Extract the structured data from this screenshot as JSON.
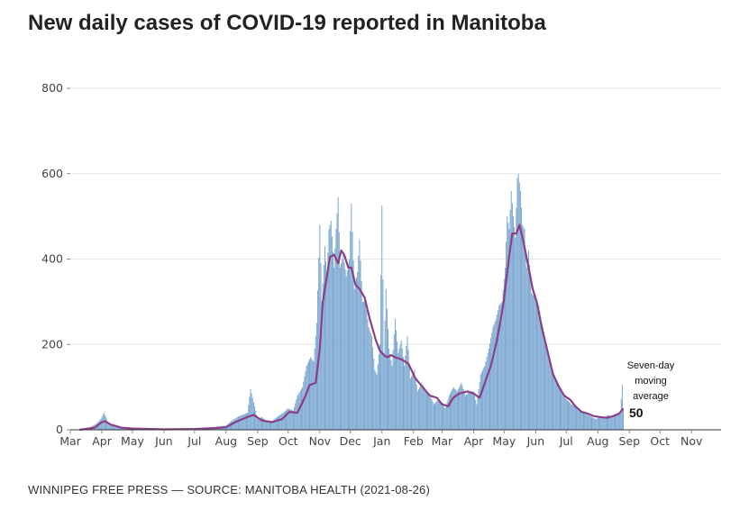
{
  "header": {
    "title": "New daily cases of COVID-19 reported in Manitoba"
  },
  "footer": {
    "source": "WINNIPEG FREE PRESS — SOURCE: MANITOBA HEALTH (2021-08-26)"
  },
  "colors": {
    "bars": "#7ba7d1",
    "average_line": "#8b3f86",
    "grid": "#e6e6e6",
    "axis": "#333333"
  },
  "chart_data": {
    "type": "bar",
    "title": "New daily cases of COVID-19 reported in Manitoba",
    "xlabel": "",
    "ylabel": "",
    "ylim": [
      0,
      800
    ],
    "y_ticks": [
      0,
      200,
      400,
      600,
      800
    ],
    "x_axis": "date",
    "x_range": [
      "2020-03-01",
      "2021-11-30"
    ],
    "x_tick_labels": [
      "Mar",
      "Apr",
      "May",
      "Jun",
      "Jul",
      "Aug",
      "Sep",
      "Oct",
      "Nov",
      "Dec",
      "Jan",
      "Feb",
      "Mar",
      "Apr",
      "May",
      "Jun",
      "Jul",
      "Aug",
      "Sep",
      "Oct",
      "Nov"
    ],
    "x_tick_dates": [
      "2020-03-01",
      "2020-04-01",
      "2020-05-01",
      "2020-06-01",
      "2020-07-01",
      "2020-08-01",
      "2020-09-01",
      "2020-10-01",
      "2020-11-01",
      "2020-12-01",
      "2021-01-01",
      "2021-02-01",
      "2021-03-01",
      "2021-04-01",
      "2021-05-01",
      "2021-06-01",
      "2021-07-01",
      "2021-08-01",
      "2021-09-01",
      "2021-10-01",
      "2021-11-01"
    ],
    "grid": true,
    "series": [
      {
        "kind": "bars",
        "values_note": "",
        "points": [
          [
            "2020-03-12",
            2
          ],
          [
            "2020-03-20",
            5
          ],
          [
            "2020-03-27",
            15
          ],
          [
            "2020-03-31",
            25
          ],
          [
            "2020-04-03",
            40
          ],
          [
            "2020-04-07",
            18
          ],
          [
            "2020-04-12",
            8
          ],
          [
            "2020-04-20",
            4
          ],
          [
            "2020-05-01",
            3
          ],
          [
            "2020-05-15",
            2
          ],
          [
            "2020-06-01",
            1
          ],
          [
            "2020-06-15",
            1
          ],
          [
            "2020-07-01",
            2
          ],
          [
            "2020-07-15",
            3
          ],
          [
            "2020-07-25",
            8
          ],
          [
            "2020-08-01",
            10
          ],
          [
            "2020-08-06",
            20
          ],
          [
            "2020-08-12",
            30
          ],
          [
            "2020-08-17",
            35
          ],
          [
            "2020-08-22",
            40
          ],
          [
            "2020-08-25",
            95
          ],
          [
            "2020-09-01",
            25
          ],
          [
            "2020-09-05",
            30
          ],
          [
            "2020-09-10",
            20
          ],
          [
            "2020-09-15",
            20
          ],
          [
            "2020-09-20",
            30
          ],
          [
            "2020-09-26",
            40
          ],
          [
            "2020-10-01",
            50
          ],
          [
            "2020-10-06",
            45
          ],
          [
            "2020-10-10",
            80
          ],
          [
            "2020-10-15",
            100
          ],
          [
            "2020-10-19",
            150
          ],
          [
            "2020-10-23",
            170
          ],
          [
            "2020-10-26",
            160
          ],
          [
            "2020-10-29",
            250
          ],
          [
            "2020-11-01",
            480
          ],
          [
            "2020-11-03",
            300
          ],
          [
            "2020-11-06",
            430
          ],
          [
            "2020-11-08",
            360
          ],
          [
            "2020-11-10",
            470
          ],
          [
            "2020-11-12",
            490
          ],
          [
            "2020-11-15",
            380
          ],
          [
            "2020-11-17",
            470
          ],
          [
            "2020-11-19",
            545
          ],
          [
            "2020-11-21",
            380
          ],
          [
            "2020-11-24",
            410
          ],
          [
            "2020-11-27",
            360
          ],
          [
            "2020-11-30",
            400
          ],
          [
            "2020-12-02",
            530
          ],
          [
            "2020-12-05",
            330
          ],
          [
            "2020-12-08",
            370
          ],
          [
            "2020-12-10",
            445
          ],
          [
            "2020-12-13",
            300
          ],
          [
            "2020-12-16",
            300
          ],
          [
            "2020-12-19",
            240
          ],
          [
            "2020-12-22",
            220
          ],
          [
            "2020-12-25",
            140
          ],
          [
            "2020-12-27",
            130
          ],
          [
            "2020-12-30",
            200
          ],
          [
            "2021-01-01",
            525
          ],
          [
            "2021-01-03",
            180
          ],
          [
            "2021-01-05",
            330
          ],
          [
            "2021-01-08",
            190
          ],
          [
            "2021-01-11",
            150
          ],
          [
            "2021-01-14",
            260
          ],
          [
            "2021-01-17",
            180
          ],
          [
            "2021-01-20",
            210
          ],
          [
            "2021-01-23",
            150
          ],
          [
            "2021-01-26",
            220
          ],
          [
            "2021-01-29",
            120
          ],
          [
            "2021-02-02",
            140
          ],
          [
            "2021-02-05",
            90
          ],
          [
            "2021-02-09",
            110
          ],
          [
            "2021-02-13",
            90
          ],
          [
            "2021-02-17",
            80
          ],
          [
            "2021-02-21",
            60
          ],
          [
            "2021-02-25",
            70
          ],
          [
            "2021-03-01",
            60
          ],
          [
            "2021-03-04",
            50
          ],
          [
            "2021-03-08",
            80
          ],
          [
            "2021-03-12",
            100
          ],
          [
            "2021-03-16",
            90
          ],
          [
            "2021-03-20",
            110
          ],
          [
            "2021-03-24",
            80
          ],
          [
            "2021-03-28",
            90
          ],
          [
            "2021-04-01",
            90
          ],
          [
            "2021-04-04",
            60
          ],
          [
            "2021-04-08",
            130
          ],
          [
            "2021-04-12",
            150
          ],
          [
            "2021-04-16",
            190
          ],
          [
            "2021-04-20",
            240
          ],
          [
            "2021-04-23",
            260
          ],
          [
            "2021-04-26",
            290
          ],
          [
            "2021-04-29",
            300
          ],
          [
            "2021-05-02",
            380
          ],
          [
            "2021-05-04",
            500
          ],
          [
            "2021-05-06",
            470
          ],
          [
            "2021-05-08",
            560
          ],
          [
            "2021-05-10",
            500
          ],
          [
            "2021-05-12",
            450
          ],
          [
            "2021-05-14",
            590
          ],
          [
            "2021-05-15",
            600
          ],
          [
            "2021-05-17",
            560
          ],
          [
            "2021-05-19",
            480
          ],
          [
            "2021-05-21",
            470
          ],
          [
            "2021-05-23",
            380
          ],
          [
            "2021-05-25",
            420
          ],
          [
            "2021-05-28",
            320
          ],
          [
            "2021-06-01",
            310
          ],
          [
            "2021-06-04",
            290
          ],
          [
            "2021-06-07",
            250
          ],
          [
            "2021-06-10",
            220
          ],
          [
            "2021-06-13",
            180
          ],
          [
            "2021-06-16",
            140
          ],
          [
            "2021-06-20",
            120
          ],
          [
            "2021-06-24",
            100
          ],
          [
            "2021-06-28",
            80
          ],
          [
            "2021-07-02",
            70
          ],
          [
            "2021-07-06",
            60
          ],
          [
            "2021-07-10",
            55
          ],
          [
            "2021-07-14",
            45
          ],
          [
            "2021-07-18",
            40
          ],
          [
            "2021-07-22",
            35
          ],
          [
            "2021-07-26",
            30
          ],
          [
            "2021-07-30",
            25
          ],
          [
            "2021-08-03",
            30
          ],
          [
            "2021-08-07",
            28
          ],
          [
            "2021-08-11",
            35
          ],
          [
            "2021-08-15",
            30
          ],
          [
            "2021-08-19",
            35
          ],
          [
            "2021-08-23",
            40
          ],
          [
            "2021-08-25",
            105
          ],
          [
            "2021-08-26",
            50
          ]
        ]
      },
      {
        "kind": "line",
        "points": [
          [
            "2020-03-10",
            0
          ],
          [
            "2020-03-25",
            5
          ],
          [
            "2020-04-01",
            18
          ],
          [
            "2020-04-04",
            20
          ],
          [
            "2020-04-10",
            12
          ],
          [
            "2020-04-20",
            5
          ],
          [
            "2020-05-01",
            3
          ],
          [
            "2020-06-01",
            1
          ],
          [
            "2020-07-01",
            2
          ],
          [
            "2020-07-20",
            4
          ],
          [
            "2020-08-01",
            6
          ],
          [
            "2020-08-10",
            18
          ],
          [
            "2020-08-20",
            28
          ],
          [
            "2020-08-28",
            35
          ],
          [
            "2020-09-05",
            22
          ],
          [
            "2020-09-15",
            18
          ],
          [
            "2020-09-25",
            25
          ],
          [
            "2020-10-02",
            42
          ],
          [
            "2020-10-10",
            40
          ],
          [
            "2020-10-18",
            80
          ],
          [
            "2020-10-22",
            105
          ],
          [
            "2020-10-28",
            110
          ],
          [
            "2020-11-01",
            190
          ],
          [
            "2020-11-04",
            300
          ],
          [
            "2020-11-08",
            360
          ],
          [
            "2020-11-11",
            405
          ],
          [
            "2020-11-15",
            410
          ],
          [
            "2020-11-19",
            390
          ],
          [
            "2020-11-22",
            420
          ],
          [
            "2020-11-25",
            410
          ],
          [
            "2020-11-29",
            380
          ],
          [
            "2020-12-02",
            380
          ],
          [
            "2020-12-06",
            340
          ],
          [
            "2020-12-10",
            330
          ],
          [
            "2020-12-15",
            310
          ],
          [
            "2020-12-20",
            260
          ],
          [
            "2020-12-26",
            210
          ],
          [
            "2020-12-30",
            185
          ],
          [
            "2021-01-03",
            175
          ],
          [
            "2021-01-06",
            170
          ],
          [
            "2021-01-10",
            175
          ],
          [
            "2021-01-14",
            170
          ],
          [
            "2021-01-20",
            165
          ],
          [
            "2021-01-27",
            155
          ],
          [
            "2021-02-03",
            120
          ],
          [
            "2021-02-10",
            100
          ],
          [
            "2021-02-17",
            80
          ],
          [
            "2021-02-24",
            75
          ],
          [
            "2021-03-01",
            60
          ],
          [
            "2021-03-07",
            55
          ],
          [
            "2021-03-12",
            75
          ],
          [
            "2021-03-18",
            85
          ],
          [
            "2021-03-26",
            90
          ],
          [
            "2021-04-01",
            85
          ],
          [
            "2021-04-07",
            75
          ],
          [
            "2021-04-12",
            110
          ],
          [
            "2021-04-18",
            150
          ],
          [
            "2021-04-24",
            210
          ],
          [
            "2021-04-30",
            290
          ],
          [
            "2021-05-05",
            390
          ],
          [
            "2021-05-09",
            460
          ],
          [
            "2021-05-13",
            460
          ],
          [
            "2021-05-16",
            480
          ],
          [
            "2021-05-20",
            440
          ],
          [
            "2021-05-25",
            380
          ],
          [
            "2021-05-29",
            330
          ],
          [
            "2021-06-02",
            300
          ],
          [
            "2021-06-07",
            240
          ],
          [
            "2021-06-12",
            190
          ],
          [
            "2021-06-18",
            130
          ],
          [
            "2021-06-24",
            100
          ],
          [
            "2021-06-29",
            80
          ],
          [
            "2021-07-05",
            70
          ],
          [
            "2021-07-10",
            55
          ],
          [
            "2021-07-16",
            42
          ],
          [
            "2021-07-22",
            38
          ],
          [
            "2021-07-28",
            32
          ],
          [
            "2021-08-03",
            30
          ],
          [
            "2021-08-10",
            28
          ],
          [
            "2021-08-16",
            32
          ],
          [
            "2021-08-22",
            38
          ],
          [
            "2021-08-26",
            50
          ]
        ]
      }
    ],
    "annotation": {
      "label_lines": [
        "Seven-day",
        "moving",
        "average"
      ],
      "value": "50"
    }
  }
}
